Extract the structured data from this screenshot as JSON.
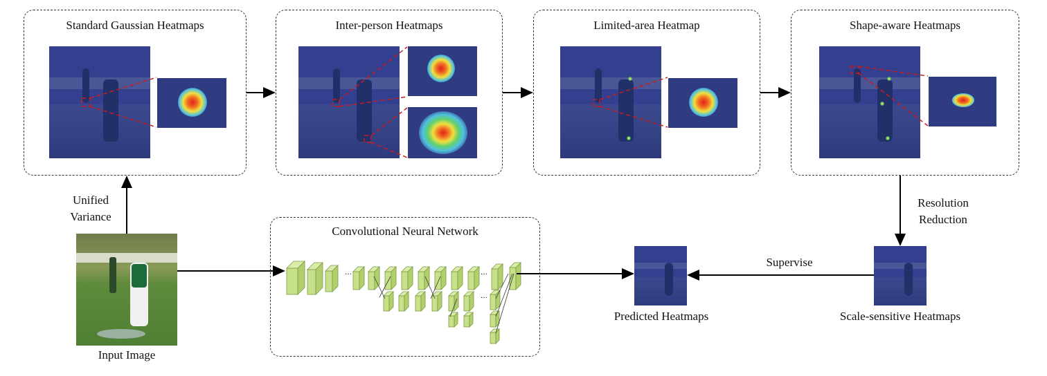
{
  "stages": [
    {
      "title": "Standard Gaussian Heatmaps"
    },
    {
      "title": "Inter-person Heatmaps"
    },
    {
      "title": "Limited-area Heatmap"
    },
    {
      "title": "Shape-aware Heatmaps"
    }
  ],
  "labels": {
    "unified_variance": [
      "Unified",
      "Variance"
    ],
    "resolution_reduction": [
      "Resolution",
      "Reduction"
    ],
    "supervise": "Supervise",
    "input_image": "Input Image",
    "cnn": "Convolutional Neural Network",
    "predicted": "Predicted Heatmaps",
    "scale_sensitive": "Scale-sensitive Heatmaps"
  },
  "colors": {
    "heatmap_bg": "#33408f",
    "cnn_block": "#c7e08a",
    "zoom_line": "#cc1a1a",
    "arrow": "#000000"
  }
}
